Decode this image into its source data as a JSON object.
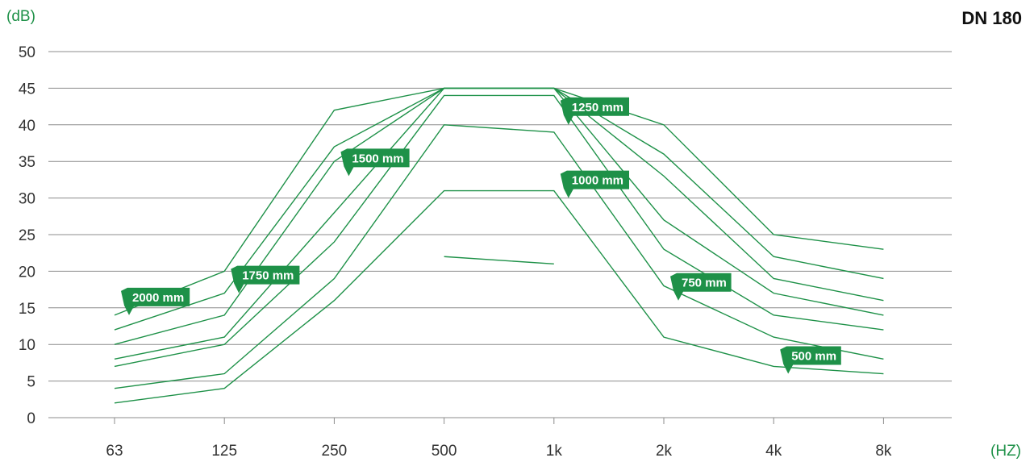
{
  "chart_data": {
    "type": "line",
    "title": "DN 180",
    "ylabel": "(dB)",
    "xlabel": "(HZ)",
    "categories": [
      "63",
      "125",
      "250",
      "500",
      "1k",
      "2k",
      "4k",
      "8k"
    ],
    "ylim": [
      0,
      50
    ],
    "yticks": [
      0,
      5,
      10,
      15,
      20,
      25,
      30,
      35,
      40,
      45,
      50
    ],
    "grid": true,
    "series": [
      {
        "name": "2000 mm",
        "values": [
          14,
          20,
          42,
          45,
          45,
          40,
          25,
          23
        ]
      },
      {
        "name": "1750 mm",
        "values": [
          12,
          17,
          37,
          45,
          45,
          36,
          22,
          19
        ]
      },
      {
        "name": "1500 mm",
        "values": [
          10,
          14,
          35,
          45,
          45,
          33,
          19,
          16
        ]
      },
      {
        "name": "1250 mm",
        "values": [
          8,
          11,
          28,
          45,
          45,
          27,
          17,
          14
        ]
      },
      {
        "name": "1000 mm",
        "values": [
          7,
          10,
          24,
          44,
          44,
          23,
          14,
          12
        ]
      },
      {
        "name": "750 mm",
        "values": [
          4,
          6,
          19,
          40,
          39,
          18,
          11,
          8
        ]
      },
      {
        "name": "500 mm",
        "values": [
          2,
          4,
          16,
          31,
          31,
          11,
          7,
          6
        ]
      },
      {
        "name": "",
        "values": [
          null,
          null,
          null,
          22,
          21,
          null,
          null,
          null
        ]
      }
    ],
    "annotations": [
      {
        "text": "2000 mm",
        "at": [
          0,
          14
        ]
      },
      {
        "text": "1750 mm",
        "at": [
          1,
          17
        ]
      },
      {
        "text": "1500 mm",
        "at": [
          2,
          33
        ]
      },
      {
        "text": "1250 mm",
        "at": [
          4,
          40
        ]
      },
      {
        "text": "1000 mm",
        "at": [
          4,
          30
        ]
      },
      {
        "text": "750 mm",
        "at": [
          5,
          16
        ]
      },
      {
        "text": "500 mm",
        "at": [
          6,
          6
        ]
      }
    ],
    "colors": {
      "line": "#1e9148",
      "label_bg": "#1e9148",
      "grid": "#8c8c8c",
      "unit_text": "#1e9148"
    }
  }
}
